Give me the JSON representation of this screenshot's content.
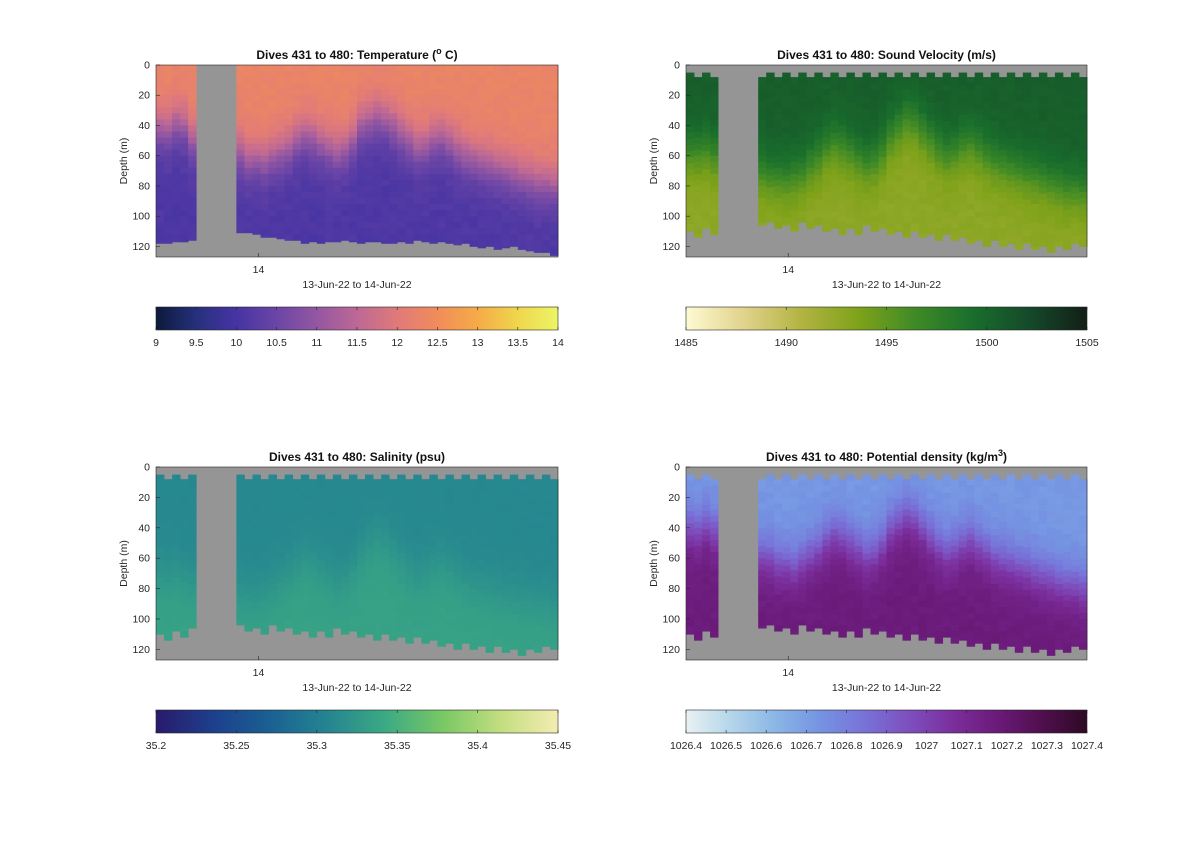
{
  "chart_data": [
    {
      "type": "heatmap",
      "variable": "temperature",
      "title": "Dives 431 to 480: Temperature (",
      "title_sup": "o",
      "title_tail": " C)",
      "ylabel": "Depth (m)",
      "xlabel": "13-Jun-22 to 14-Jun-22",
      "x_tick_labels": [
        "14"
      ],
      "y_tick_labels": [
        "0",
        "20",
        "40",
        "60",
        "80",
        "100",
        "120"
      ],
      "ylim": [
        0,
        127
      ],
      "y_reversed": true,
      "colorbar": {
        "tick_labels": [
          "9",
          "9.5",
          "10",
          "10.5",
          "11",
          "11.5",
          "12",
          "12.5",
          "13",
          "13.5",
          "14"
        ],
        "range": [
          9,
          14
        ],
        "colors": [
          "#0b1a3a",
          "#26307c",
          "#4634a3",
          "#6b45a6",
          "#9357a2",
          "#bd6895",
          "#e07a7a",
          "#f08c5a",
          "#f5ab48",
          "#efd64d",
          "#ecf566"
        ]
      },
      "surface_value": 12.3,
      "deep_value": 10.1,
      "gap_dives": [
        5,
        9
      ],
      "thermocline_depth_m": [
        42,
        43,
        38,
        40,
        50,
        50,
        48,
        52,
        54,
        57,
        58,
        63,
        62,
        64,
        60,
        58,
        55,
        50,
        46,
        48,
        52,
        55,
        58,
        56,
        50,
        40,
        37,
        34,
        36,
        40,
        45,
        50,
        55,
        54,
        50,
        48,
        52,
        56,
        60,
        62,
        64,
        66,
        68,
        70,
        72,
        74,
        76,
        78,
        78,
        80
      ],
      "max_depth_m": [
        118,
        118,
        117,
        117,
        116,
        114,
        114,
        115,
        115,
        114,
        111,
        111,
        112,
        114,
        114,
        115,
        116,
        116,
        118,
        117,
        118,
        117,
        117,
        116,
        117,
        118,
        117,
        117,
        118,
        118,
        117,
        118,
        116,
        117,
        118,
        117,
        118,
        119,
        118,
        120,
        121,
        120,
        122,
        121,
        120,
        122,
        123,
        124,
        124,
        126
      ]
    },
    {
      "type": "heatmap",
      "variable": "sound_velocity",
      "title": "Dives 431 to 480: Sound Velocity (m/s)",
      "ylabel": "Depth (m)",
      "xlabel": "13-Jun-22 to 14-Jun-22",
      "x_tick_labels": [
        "14"
      ],
      "y_tick_labels": [
        "0",
        "20",
        "40",
        "60",
        "80",
        "100",
        "120"
      ],
      "ylim": [
        0,
        127
      ],
      "y_reversed": true,
      "colorbar": {
        "tick_labels": [
          "1485",
          "1490",
          "1495",
          "1500",
          "1505"
        ],
        "range": [
          1485,
          1505
        ],
        "colors": [
          "#fefbd3",
          "#e1d38c",
          "#b3b443",
          "#7fa21a",
          "#3f8a26",
          "#196e2c",
          "#15492a",
          "#121f17"
        ]
      },
      "surface_value": 1500.5,
      "deep_value": 1492.8,
      "gap_dives": [
        4,
        8
      ],
      "thermocline_depth_m": [
        58,
        58,
        56,
        60,
        62,
        64,
        66,
        68,
        70,
        72,
        74,
        75,
        76,
        74,
        72,
        66,
        62,
        56,
        52,
        54,
        58,
        62,
        66,
        64,
        58,
        48,
        42,
        36,
        38,
        44,
        50,
        56,
        60,
        58,
        54,
        52,
        56,
        60,
        64,
        66,
        68,
        70,
        72,
        74,
        76,
        78,
        80,
        82,
        82,
        84
      ],
      "max_depth_m": [
        110,
        114,
        108,
        112,
        106,
        110,
        104,
        108,
        102,
        106,
        104,
        108,
        106,
        110,
        104,
        108,
        106,
        110,
        108,
        112,
        108,
        112,
        106,
        110,
        108,
        112,
        110,
        114,
        110,
        114,
        112,
        116,
        112,
        116,
        114,
        118,
        116,
        120,
        116,
        120,
        118,
        122,
        118,
        122,
        120,
        124,
        120,
        122,
        118,
        120
      ]
    },
    {
      "type": "heatmap",
      "variable": "salinity",
      "title": "Dives 431 to 480: Salinity (psu)",
      "ylabel": "Depth (m)",
      "xlabel": "13-Jun-22 to 14-Jun-22",
      "x_tick_labels": [
        "14"
      ],
      "y_tick_labels": [
        "0",
        "20",
        "40",
        "60",
        "80",
        "100",
        "120"
      ],
      "ylim": [
        0,
        127
      ],
      "y_reversed": true,
      "colorbar": {
        "tick_labels": [
          "35.2",
          "35.25",
          "35.3",
          "35.35",
          "35.4",
          "35.45"
        ],
        "range": [
          35.2,
          35.45
        ],
        "colors": [
          "#2a1a6b",
          "#1d3f8c",
          "#1a6193",
          "#258591",
          "#3caa83",
          "#79c864",
          "#c3de80",
          "#f4ecb2"
        ]
      },
      "surface_value": 35.31,
      "deep_value": 35.335,
      "gap_dives": [
        5,
        9
      ],
      "thermocline_depth_m": [
        70,
        72,
        70,
        74,
        76,
        78,
        78,
        80,
        82,
        82,
        84,
        86,
        86,
        84,
        80,
        76,
        72,
        66,
        62,
        64,
        68,
        72,
        76,
        74,
        68,
        58,
        52,
        48,
        50,
        56,
        62,
        68,
        72,
        70,
        66,
        64,
        68,
        72,
        76,
        78,
        80,
        82,
        84,
        86,
        86,
        88,
        88,
        90,
        90,
        92
      ],
      "max_depth_m": [
        110,
        114,
        108,
        112,
        106,
        110,
        104,
        108,
        102,
        106,
        104,
        108,
        106,
        110,
        104,
        108,
        106,
        110,
        108,
        112,
        108,
        112,
        106,
        110,
        108,
        112,
        110,
        114,
        110,
        114,
        112,
        116,
        112,
        116,
        114,
        118,
        116,
        120,
        116,
        120,
        118,
        122,
        118,
        122,
        120,
        124,
        120,
        122,
        118,
        120
      ]
    },
    {
      "type": "heatmap",
      "variable": "potential_density",
      "title": "Dives 431 to 480: Potential density (kg/m",
      "title_sup": "3",
      "title_tail": ")",
      "ylabel": "Depth (m)",
      "xlabel": "13-Jun-22 to 14-Jun-22",
      "x_tick_labels": [
        "14"
      ],
      "y_tick_labels": [
        "0",
        "20",
        "40",
        "60",
        "80",
        "100",
        "120"
      ],
      "ylim": [
        0,
        127
      ],
      "y_reversed": true,
      "colorbar": {
        "tick_labels": [
          "1026.4",
          "1026.5",
          "1026.6",
          "1026.7",
          "1026.8",
          "1026.9",
          "1027",
          "1027.1",
          "1027.2",
          "1027.3",
          "1027.4"
        ],
        "range": [
          1026.4,
          1027.4
        ],
        "colors": [
          "#e8f2f2",
          "#b5d6ea",
          "#8bb6e6",
          "#7594e2",
          "#7872d8",
          "#7e4fbe",
          "#7b2e9c",
          "#6a1a78",
          "#4f0f4e",
          "#2e0924"
        ]
      },
      "surface_value": 1026.72,
      "deep_value": 1027.17,
      "gap_dives": [
        4,
        8
      ],
      "thermocline_depth_m": [
        40,
        42,
        38,
        42,
        48,
        50,
        50,
        52,
        56,
        58,
        60,
        64,
        64,
        66,
        62,
        58,
        54,
        48,
        44,
        46,
        50,
        54,
        58,
        56,
        50,
        40,
        36,
        32,
        34,
        40,
        46,
        52,
        56,
        54,
        50,
        48,
        52,
        56,
        60,
        62,
        64,
        66,
        68,
        70,
        72,
        74,
        76,
        78,
        78,
        80
      ],
      "max_depth_m": [
        110,
        114,
        108,
        112,
        106,
        110,
        104,
        108,
        102,
        106,
        104,
        108,
        106,
        110,
        104,
        108,
        106,
        110,
        108,
        112,
        108,
        112,
        106,
        110,
        108,
        112,
        110,
        114,
        110,
        114,
        112,
        116,
        112,
        116,
        114,
        118,
        116,
        120,
        116,
        120,
        118,
        122,
        118,
        122,
        120,
        124,
        120,
        122,
        118,
        120
      ]
    }
  ]
}
